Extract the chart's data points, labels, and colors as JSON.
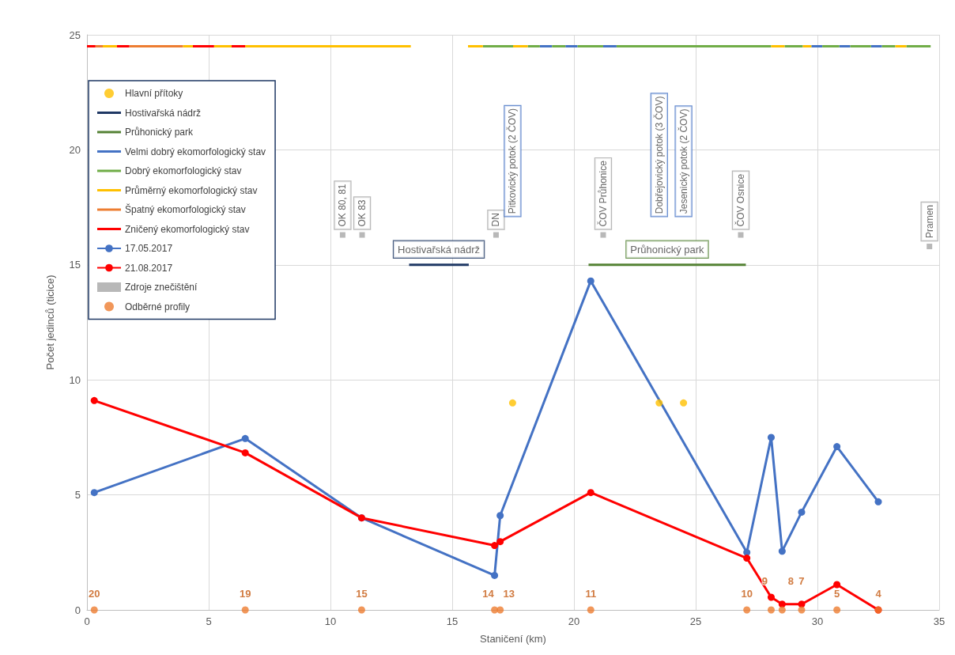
{
  "chart_data": {
    "type": "line",
    "xlabel": "Staničení (km)",
    "ylabel": "Počet jedinců (ticice)",
    "xlim": [
      0,
      35
    ],
    "xticks": [
      0,
      5,
      10,
      15,
      20,
      25,
      30,
      35
    ],
    "ylim": [
      0,
      25
    ],
    "yticks": [
      0,
      5,
      10,
      15,
      20,
      25
    ],
    "grid": true,
    "legend": "top left",
    "series": [
      {
        "name": "Hlavní přítoky",
        "type": "scatter",
        "marker": "circle",
        "color": "#ffc000",
        "x": [
          17.48,
          23.5,
          24.5
        ],
        "values": [
          9,
          9,
          9
        ]
      },
      {
        "name": "Hostivařská nádrž",
        "marker": "none",
        "color": "#1f3864",
        "x": [
          13.23,
          15.68
        ],
        "values": [
          15,
          15
        ]
      },
      {
        "name": "Průhonický park",
        "marker": "none",
        "color": "#548235",
        "x": [
          20.6,
          27.06
        ],
        "values": [
          15,
          15
        ]
      },
      {
        "name": "Velmi dobrý ekomorfologický stav",
        "marker": "none",
        "color": "#4472c4",
        "x": [
          18.6,
          19.1,
          19.4,
          19.65,
          20.15,
          20.7,
          21.2,
          21.75,
          25,
          29.75,
          30.2,
          30.5,
          30.9,
          31.35,
          31.8,
          32.2,
          32.65
        ],
        "values": [
          24.5,
          24.5,
          null,
          24.5,
          24.5,
          null,
          24.5,
          24.5,
          null,
          24.5,
          24.5,
          null,
          24.5,
          24.5,
          null,
          24.5,
          24.5
        ]
      },
      {
        "name": "Dobrý ekomorfologický stav",
        "marker": "none",
        "color": "#70ad47",
        "x": [
          16.26,
          17.5,
          17.8,
          18.1,
          18.6,
          18.8,
          19.1,
          19.65,
          19.9,
          20.15,
          21.2,
          21.5,
          21.75,
          28.1,
          28.4,
          28.65,
          29.4,
          29.8,
          30.2,
          30.9,
          31.1,
          31.35,
          32.2,
          32.4,
          32.65,
          33.2,
          33.4,
          33.65,
          34.65
        ],
        "values": [
          24.5,
          24.5,
          null,
          24.5,
          24.5,
          null,
          24.5,
          24.5,
          null,
          24.5,
          24.5,
          null,
          24.5,
          24.5,
          null,
          24.5,
          24.5,
          null,
          24.5,
          24.5,
          null,
          24.5,
          24.5,
          null,
          24.5,
          24.5,
          null,
          24.5,
          24.5
        ]
      },
      {
        "name": "Průměrný ekomorfologický stav",
        "marker": "none",
        "color": "#ffc000",
        "x": [
          0.65,
          1.23,
          2.5,
          3.94,
          4.35,
          4.8,
          5.22,
          5.94,
          6.2,
          6.5,
          13.3,
          14.5,
          15.65,
          16.26,
          16.9,
          17.5,
          18.1,
          23,
          28.1,
          28.65,
          29,
          29.4,
          29.75,
          31,
          33.2,
          33.65
        ],
        "values": [
          24.5,
          24.5,
          null,
          24.5,
          24.5,
          null,
          24.5,
          24.5,
          null,
          24.5,
          24.5,
          null,
          24.5,
          24.5,
          null,
          24.5,
          24.5,
          null,
          24.5,
          24.5,
          null,
          24.5,
          24.5,
          null,
          24.5,
          24.5
        ]
      },
      {
        "name": "Špatný ekomorfologický stav",
        "marker": "none",
        "color": "#ed7d31",
        "x": [
          0.35,
          0.65,
          1.2,
          1.74,
          3.94
        ],
        "values": [
          24.5,
          24.5,
          null,
          24.5,
          24.5
        ]
      },
      {
        "name": "Zničený ekomorfologický stav",
        "marker": "none",
        "color": "#ff0000",
        "x": [
          0,
          0.35,
          0.8,
          1.23,
          1.74,
          3,
          4.35,
          5.22,
          5.5,
          5.94,
          6.5
        ],
        "values": [
          24.5,
          24.5,
          null,
          24.5,
          24.5,
          null,
          24.5,
          24.5,
          null,
          24.5,
          24.5
        ]
      },
      {
        "name": "17.05.2017",
        "marker": "circle",
        "color": "#4472c4",
        "x": [
          0.3,
          6.5,
          11.28,
          16.74,
          16.97,
          20.69,
          27.1,
          28.1,
          28.55,
          29.35,
          30.8,
          32.5
        ],
        "values": [
          5.1,
          7.45,
          4.0,
          1.5,
          4.1,
          14.3,
          2.5,
          7.5,
          2.55,
          4.25,
          7.1,
          4.7
        ]
      },
      {
        "name": "21.08.2017",
        "marker": "circle",
        "color": "#ff0000",
        "x": [
          0.3,
          6.5,
          11.28,
          16.74,
          16.97,
          20.69,
          27.1,
          28.1,
          28.55,
          29.35,
          30.8,
          32.5
        ],
        "values": [
          9.1,
          6.83,
          4.0,
          2.8,
          2.97,
          5.1,
          2.25,
          0.55,
          0.25,
          0.25,
          1.1,
          0
        ]
      },
      {
        "name": "Zdroje znečištění",
        "type": "scatter",
        "marker": "square",
        "color": "#a6a6a6",
        "x": [
          10.5,
          11.3,
          16.8,
          21.2,
          26.85,
          34.6
        ],
        "values": [
          16.3,
          16.3,
          16.3,
          16.3,
          16.3,
          15.8
        ],
        "value_labels": [
          "OK 80, 81",
          "OK 83",
          "DN",
          "ČOV Průhonice",
          "ČOV Osnice",
          "Pramen"
        ]
      },
      {
        "name": "Odběrné profily",
        "type": "scatter",
        "marker": "circle",
        "color": "#ed7d31",
        "x": [
          0.3,
          6.5,
          11.28,
          16.74,
          16.97,
          20.69,
          27.1,
          28.1,
          28.55,
          29.35,
          30.8,
          32.5
        ],
        "values": [
          0,
          0,
          0,
          0,
          0,
          0,
          0,
          0,
          0,
          0,
          0,
          0
        ]
      }
    ],
    "annotations": [
      "Pitkovický potok (2 ČOV)",
      "Dobřejovický potok (3 ČOV)",
      "Jesenický potok (2 ČOV)",
      {
        "text": "Hostivařská nádrž",
        "x": 14.45,
        "y": 15
      },
      {
        "text": "Průhonický park",
        "x": 23.83,
        "y": 15
      },
      {
        "text": "20",
        "x": 0.3,
        "y": 0
      },
      {
        "text": "19",
        "x": 6.5,
        "y": 0
      },
      {
        "text": "15",
        "x": 11.28,
        "y": 0
      },
      {
        "text": "14",
        "x": 16.74,
        "y": 0
      },
      {
        "text": "13",
        "x": 16.97,
        "y": 0
      },
      {
        "text": "11",
        "x": 20.69,
        "y": 0
      },
      {
        "text": "10",
        "x": 27.1,
        "y": 0
      },
      {
        "text": "9",
        "x": 28.1,
        "y": 0
      },
      {
        "text": "8",
        "x": 28.55,
        "y": 0
      },
      {
        "text": "7",
        "x": 29.35,
        "y": 0
      },
      {
        "text": "5",
        "x": 30.8,
        "y": 0
      },
      {
        "text": "4",
        "x": 32.5,
        "y": 0
      }
    ]
  }
}
